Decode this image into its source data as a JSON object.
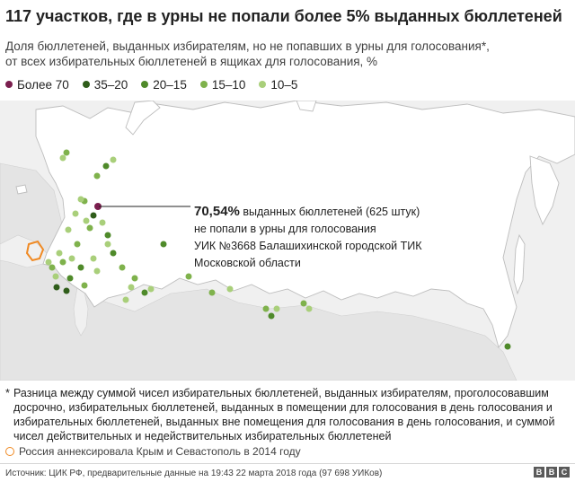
{
  "title": "117 участков, где в урны не попали более 5% выданных бюллетеней",
  "subtitle_line1": "Доля бюллетеней, выданных избирателям, но не попавших в урны для голосования*,",
  "subtitle_line2": "от всех избирательных бюллетеней в ящиках для голосования, %",
  "legend": [
    {
      "label": "Более 70",
      "color": "#7a1e4e"
    },
    {
      "label": "35–20",
      "color": "#2f5d1a"
    },
    {
      "label": "20–15",
      "color": "#4f8a2a"
    },
    {
      "label": "15–10",
      "color": "#7fb24c"
    },
    {
      "label": "10–5",
      "color": "#a9cf7a"
    }
  ],
  "callout": {
    "value": "70,54%",
    "line1_rest": " выданных бюллетеней (625 штук)",
    "line2": "не попали в урны для голосования",
    "line3": "УИК №3668 Балашихинской городской ТИК",
    "line4": "Московской области"
  },
  "footnote": {
    "star": "*",
    "text": "Разница между суммой чисел избирательных бюллетеней, выданных избирателям, проголосовавшим досрочно, избирательных бюллетеней, выданных в помещении для голосования в день голосования и избирательных бюллетеней, выданных вне помещения для голосования в день голосования, и суммой чисел действительных и недействительных избирательных бюллетеней"
  },
  "crimea_note": "Россия аннексировала Крым и Севастополь в 2014 году",
  "source": "Источник: ЦИК РФ, предварительные данные на 19:43 22 марта 2018 года (97 698 УИКов)",
  "brand": [
    "B",
    "B",
    "C"
  ],
  "colors": {
    "russia_fill": "#ffffff",
    "other_land": "#e4e4e4",
    "water": "#f0f0f0",
    "border": "#bdbdbd",
    "crimea": "#f08a24"
  }
}
